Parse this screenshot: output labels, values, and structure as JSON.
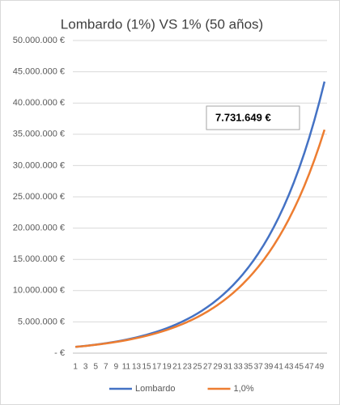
{
  "chart_data": {
    "type": "line",
    "title": "Lombardo (1%) VS 1% (50 años)",
    "categories": [
      1,
      null,
      3,
      null,
      5,
      null,
      7,
      null,
      9,
      null,
      11,
      null,
      13,
      null,
      15,
      null,
      17,
      null,
      19,
      null,
      21,
      null,
      23,
      null,
      25,
      null,
      27,
      null,
      29,
      null,
      31,
      null,
      33,
      null,
      35,
      null,
      37,
      null,
      39,
      null,
      41,
      null,
      43,
      null,
      45,
      null,
      47,
      null,
      49,
      null
    ],
    "series": [
      {
        "name": "Lombardo",
        "color": "#4472c4",
        "values": [
          1000000,
          1080000,
          1166000,
          1260000,
          1360000,
          1469000,
          1587000,
          1714000,
          1851000,
          1999000,
          2159000,
          2332000,
          2518000,
          2720000,
          2937000,
          3172000,
          3426000,
          3700000,
          3996000,
          4316000,
          4661000,
          5034000,
          5437000,
          5871000,
          6341000,
          6848000,
          7396000,
          7988000,
          8627000,
          9317000,
          10063000,
          10868000,
          11737000,
          12676000,
          13690000,
          14785000,
          15968000,
          17246000,
          18625000,
          20115000,
          21725000,
          23462000,
          25339000,
          27367000,
          29556000,
          31920000,
          34474000,
          37232000,
          40211000,
          43427000
        ]
      },
      {
        "name": "1,0%",
        "color": "#ed7d31",
        "values": [
          1000000,
          1076000,
          1157000,
          1245000,
          1339000,
          1440000,
          1549000,
          1667000,
          1793000,
          1929000,
          2075000,
          2232000,
          2401000,
          2583000,
          2778000,
          2989000,
          3215000,
          3458000,
          3720000,
          4002000,
          4305000,
          4631000,
          4981000,
          5358000,
          5764000,
          6200000,
          6670000,
          7175000,
          7718000,
          8302000,
          8931000,
          9607000,
          10334000,
          11117000,
          11958000,
          12864000,
          13837000,
          14885000,
          16012000,
          17224000,
          18528000,
          19930000,
          21439000,
          23062000,
          24808000,
          26686000,
          28706000,
          30879000,
          33216000,
          35731000
        ]
      }
    ],
    "ylim": [
      0,
      50000000
    ],
    "yticks": [
      {
        "value": 0,
        "label": "-  €"
      },
      {
        "value": 5000000,
        "label": "5.000.000 €"
      },
      {
        "value": 10000000,
        "label": "10.000.000 €"
      },
      {
        "value": 15000000,
        "label": "15.000.000 €"
      },
      {
        "value": 20000000,
        "label": "20.000.000 €"
      },
      {
        "value": 25000000,
        "label": "25.000.000 €"
      },
      {
        "value": 30000000,
        "label": "30.000.000 €"
      },
      {
        "value": 35000000,
        "label": "35.000.000 €"
      },
      {
        "value": 40000000,
        "label": "40.000.000 €"
      },
      {
        "value": 45000000,
        "label": "45.000.000 €"
      },
      {
        "value": 50000000,
        "label": "50.000.000 €"
      }
    ],
    "grid": true,
    "legend": "bottom",
    "annotation": "7.731.649 €"
  }
}
